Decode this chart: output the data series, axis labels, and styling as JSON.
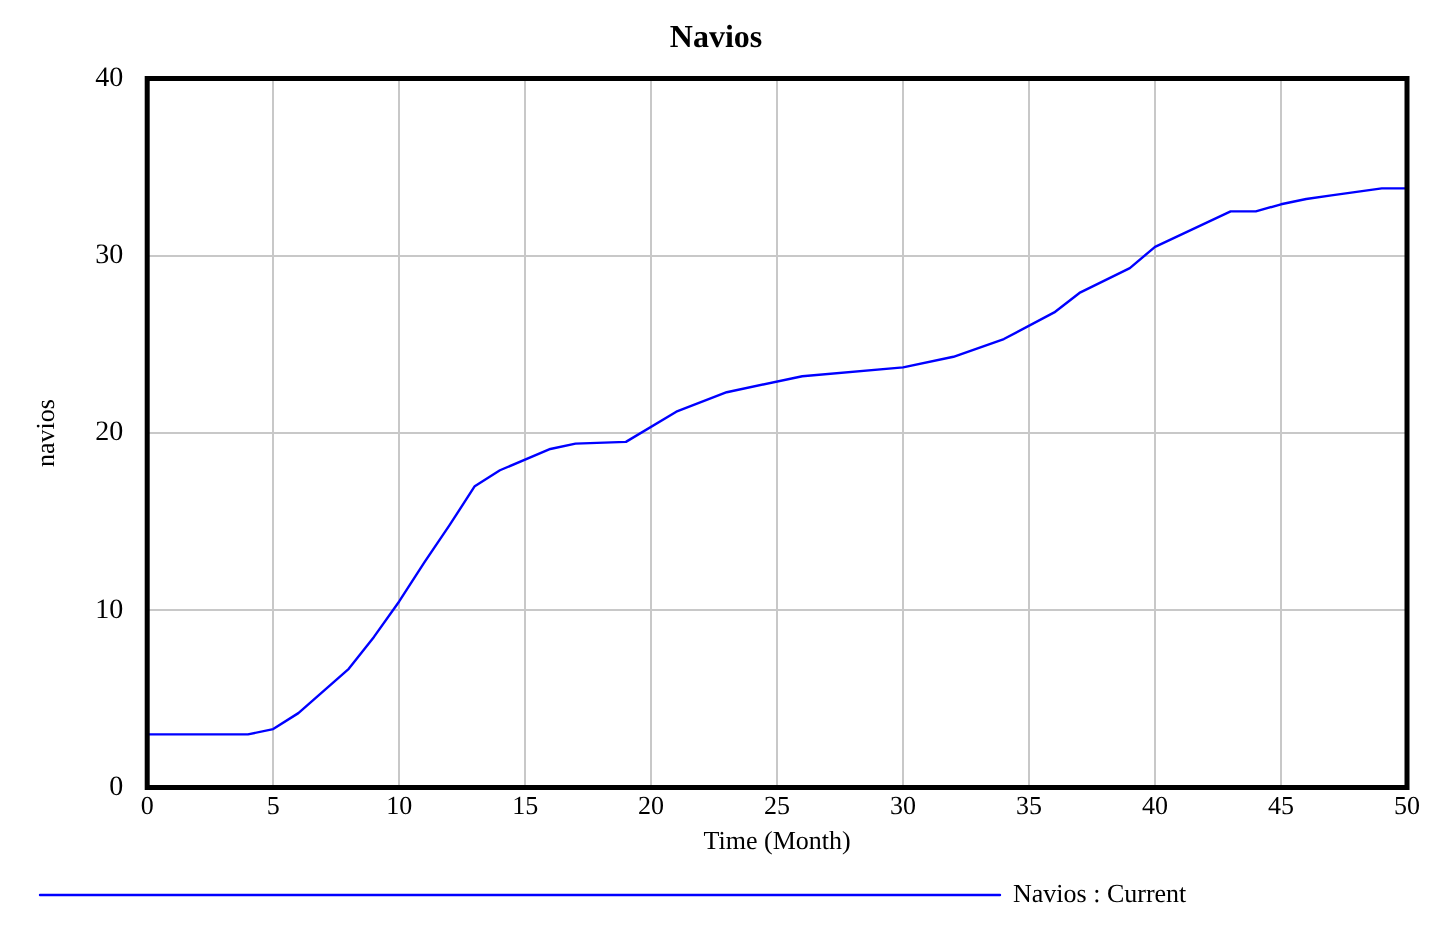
{
  "chart_data": {
    "type": "line",
    "title": "Navios",
    "xlabel": "Time (Month)",
    "ylabel": "navios",
    "x": [
      0,
      4,
      5,
      6,
      8,
      9,
      10,
      11,
      12,
      13,
      14,
      16,
      17,
      19,
      21,
      23,
      26,
      30,
      32,
      34,
      36,
      37,
      39,
      40,
      43,
      44,
      45,
      46,
      47,
      48,
      49,
      50
    ],
    "series": [
      {
        "name": "Navios : Current",
        "color": "#0000ff",
        "values": [
          3.0,
          3.0,
          3.3,
          4.2,
          6.7,
          8.5,
          10.5,
          12.7,
          14.8,
          17.0,
          17.9,
          19.1,
          19.4,
          19.5,
          21.2,
          22.3,
          23.2,
          23.7,
          24.3,
          25.3,
          26.8,
          27.9,
          29.3,
          30.5,
          32.5,
          32.5,
          32.9,
          33.2,
          33.4,
          33.6,
          33.8,
          33.8
        ]
      }
    ],
    "xlim": [
      0,
      50
    ],
    "xticks": [
      0,
      5,
      10,
      15,
      20,
      25,
      30,
      35,
      40,
      45,
      50
    ],
    "ylim": [
      0,
      40
    ],
    "yticks": [
      0,
      10,
      20,
      30,
      40
    ],
    "grid": true,
    "legend": "bottom",
    "marker": "none",
    "line_style": "solid"
  }
}
